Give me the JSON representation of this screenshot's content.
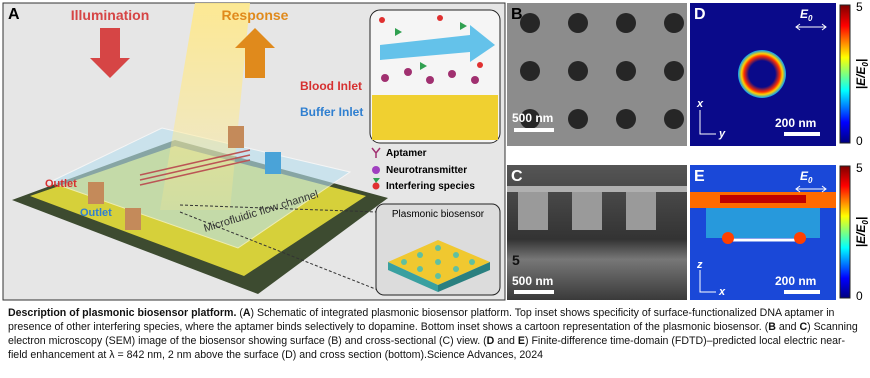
{
  "figure": {
    "panel_a": {
      "label": "A",
      "illumination": "Illumination",
      "response": "Response",
      "blood_inlet": "Blood Inlet",
      "buffer_inlet": "Buffer Inlet",
      "outlet_left": "Outlet",
      "outlet_bottom": "Outlet",
      "channel": "Microfluidic flow channel",
      "legend": [
        "Aptamer",
        "Neurotransmitter",
        "Interfering species"
      ],
      "inset_title": "Plasmonic biosensor"
    },
    "panel_b": {
      "label": "B",
      "scale": "500 nm"
    },
    "panel_c": {
      "label": "C",
      "scale": "500 nm",
      "mark": "5"
    },
    "panel_d": {
      "label": "D",
      "field": "E",
      "field_sub": "0",
      "axis_v": "x",
      "axis_h": "y",
      "scale": "200 nm"
    },
    "panel_e": {
      "label": "E",
      "field": "E",
      "field_sub": "0",
      "axis_v": "z",
      "axis_h": "x",
      "scale": "200 nm"
    },
    "colorbars": [
      {
        "max": "5",
        "min": "0",
        "label": "|E/E",
        "label_sub": "0",
        "label_end": "|"
      },
      {
        "max": "5",
        "min": "0",
        "label": "|E/E",
        "label_sub": "0",
        "label_end": "|"
      }
    ]
  },
  "caption": {
    "runs": [
      {
        "text": "Description of plasmonic biosensor platform.",
        "bold": true
      },
      {
        "text": " ("
      },
      {
        "text": "A",
        "bold": true
      },
      {
        "text": ") Schematic of integrated plasmonic biosensor platform. Top inset shows specificity of surface-functionalized DNA aptamer in presence of other interfering species, where the aptamer binds selectively to dopamine. Bottom inset shows a cartoon representation of the plasmonic biosensor. ("
      },
      {
        "text": "B",
        "bold": true
      },
      {
        "text": " and "
      },
      {
        "text": "C",
        "bold": true
      },
      {
        "text": ") Scanning electron microscopy (SEM) image of the biosensor showing surface (B) and cross-sectional (C) view. ("
      },
      {
        "text": "D",
        "bold": true
      },
      {
        "text": " and "
      },
      {
        "text": "E",
        "bold": true
      },
      {
        "text": ") Finite-difference time-domain (FDTD)–predicted local electric near-field enhancement at λ = 842 nm, 2 nm above the surface (D) and cross section (bottom).Science Advances, 2024"
      }
    ]
  }
}
